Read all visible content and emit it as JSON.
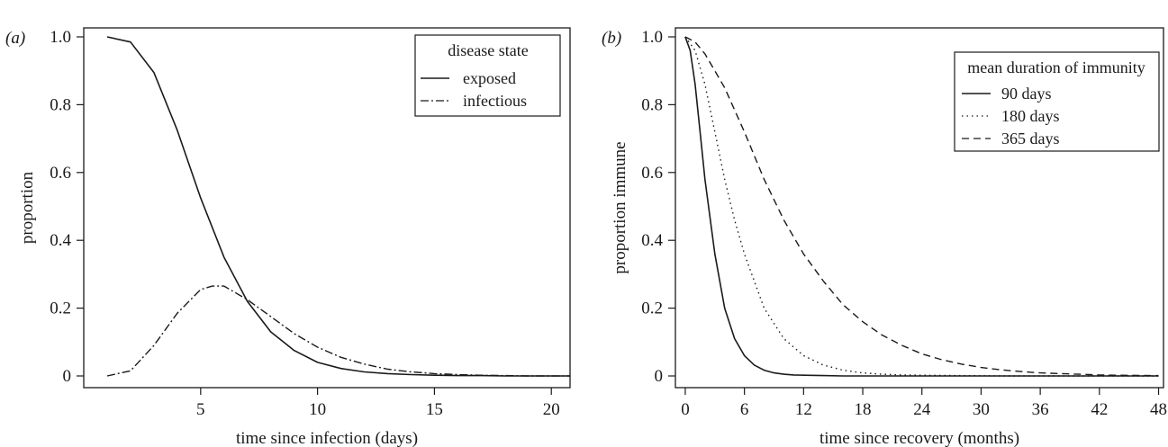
{
  "chart_data": [
    {
      "panel_label": "(a)",
      "type": "line",
      "xlabel": "time since infection (days)",
      "ylabel": "proportion",
      "xlim": [
        0,
        20.8
      ],
      "ylim": [
        0,
        1.0
      ],
      "xticks": [
        5,
        10,
        15,
        20
      ],
      "yticks": [
        0,
        0.2,
        0.4,
        0.6,
        0.8,
        1.0
      ],
      "ytick_labels": [
        "0",
        "0.2",
        "0.4",
        "0.6",
        "0.8",
        "1.0"
      ],
      "grid": false,
      "legend": {
        "title": "disease state",
        "placement": "top-right",
        "entries": [
          "exposed",
          "infectious"
        ]
      },
      "series": [
        {
          "name": "exposed",
          "dash": "solid",
          "x": [
            1,
            2,
            3,
            4,
            5,
            6,
            7,
            8,
            9,
            10,
            11,
            12,
            13,
            14,
            15,
            16,
            17,
            18,
            19,
            20,
            20.8
          ],
          "y": [
            1.0,
            0.985,
            0.895,
            0.725,
            0.525,
            0.35,
            0.22,
            0.13,
            0.075,
            0.04,
            0.022,
            0.012,
            0.007,
            0.004,
            0.002,
            0.001,
            0.001,
            0.0,
            0.0,
            0.0,
            0.0
          ]
        },
        {
          "name": "infectious",
          "dash": "dashdot",
          "x": [
            1,
            2,
            3,
            4,
            5,
            5.5,
            6,
            7,
            8,
            9,
            10,
            11,
            12,
            13,
            14,
            15,
            16,
            17,
            18,
            19,
            20,
            20.8
          ],
          "y": [
            0.0,
            0.015,
            0.09,
            0.185,
            0.255,
            0.265,
            0.265,
            0.225,
            0.175,
            0.125,
            0.085,
            0.055,
            0.035,
            0.02,
            0.012,
            0.007,
            0.004,
            0.002,
            0.001,
            0.0,
            0.0,
            0.0
          ]
        }
      ]
    },
    {
      "panel_label": "(b)",
      "type": "line",
      "xlabel": "time since recovery (months)",
      "ylabel": "proportion immune",
      "xlim": [
        -1,
        48.5
      ],
      "ylim": [
        0,
        1.0
      ],
      "xticks": [
        0,
        6,
        12,
        18,
        24,
        30,
        36,
        42,
        48
      ],
      "yticks": [
        0,
        0.2,
        0.4,
        0.6,
        0.8,
        1.0
      ],
      "ytick_labels": [
        "0",
        "0.2",
        "0.4",
        "0.6",
        "0.8",
        "1.0"
      ],
      "grid": false,
      "legend": {
        "title": "mean duration of immunity",
        "placement": "top-right",
        "entries": [
          "90 days",
          "180 days",
          "365 days"
        ]
      },
      "series": [
        {
          "name": "90 days",
          "dash": "solid",
          "x": [
            0,
            0.5,
            1,
            1.5,
            2,
            3,
            4,
            5,
            6,
            7,
            8,
            9,
            10,
            11,
            12,
            14,
            16,
            20,
            24,
            30,
            36,
            42,
            48
          ],
          "y": [
            1.0,
            0.96,
            0.86,
            0.72,
            0.58,
            0.36,
            0.2,
            0.11,
            0.06,
            0.032,
            0.017,
            0.009,
            0.005,
            0.003,
            0.002,
            0.001,
            0.0,
            0.0,
            0.0,
            0.0,
            0.0,
            0.0,
            0.0
          ]
        },
        {
          "name": "180 days",
          "dash": "dotted",
          "x": [
            0,
            1,
            2,
            3,
            4,
            5,
            6,
            8,
            10,
            12,
            14,
            16,
            18,
            20,
            22,
            24,
            28,
            32,
            36,
            42,
            48
          ],
          "y": [
            1.0,
            0.96,
            0.86,
            0.72,
            0.58,
            0.46,
            0.36,
            0.2,
            0.11,
            0.06,
            0.032,
            0.017,
            0.009,
            0.005,
            0.003,
            0.002,
            0.001,
            0.0,
            0.0,
            0.0,
            0.0
          ]
        },
        {
          "name": "365 days",
          "dash": "dashed",
          "x": [
            0,
            1,
            2,
            3,
            4,
            6,
            8,
            10,
            12,
            14,
            16,
            18,
            20,
            22,
            24,
            26,
            28,
            30,
            32,
            34,
            36,
            38,
            40,
            42,
            44,
            46,
            48
          ],
          "y": [
            1.0,
            0.985,
            0.95,
            0.9,
            0.85,
            0.72,
            0.58,
            0.46,
            0.36,
            0.28,
            0.21,
            0.16,
            0.12,
            0.09,
            0.065,
            0.048,
            0.035,
            0.025,
            0.018,
            0.013,
            0.009,
            0.007,
            0.005,
            0.003,
            0.002,
            0.0015,
            0.001
          ]
        }
      ]
    }
  ]
}
